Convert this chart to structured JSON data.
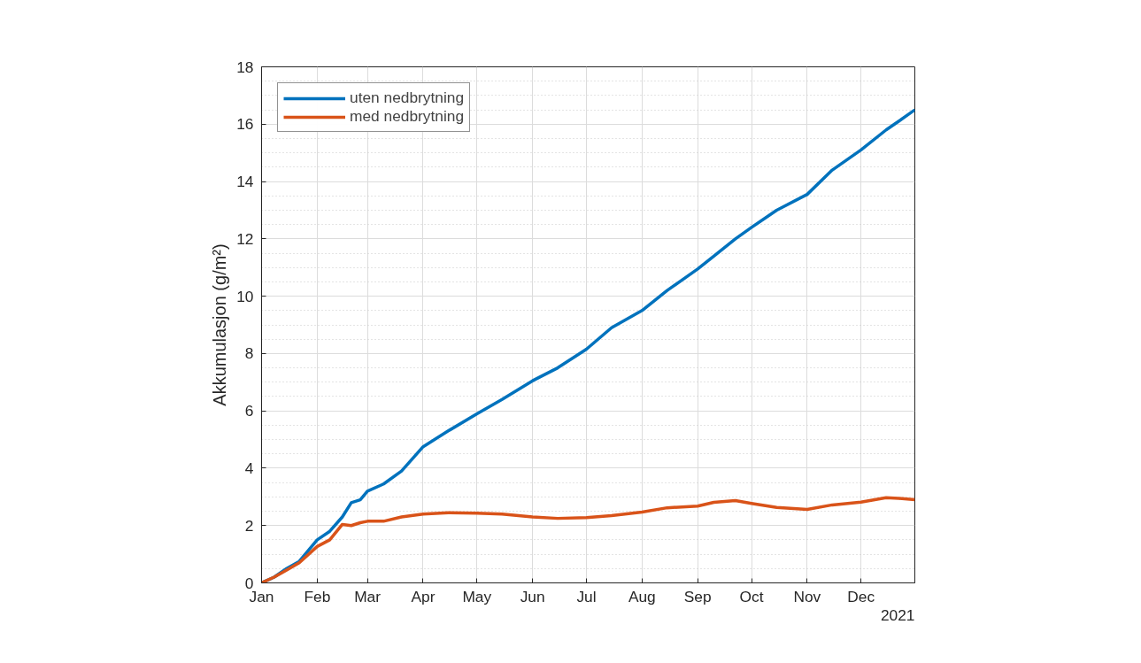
{
  "chart_data": {
    "type": "line",
    "ylabel": "Akkumulasjon (g/m²)",
    "annotations": [
      "2021"
    ],
    "x": [
      "2021-01-01",
      "2021-01-08",
      "2021-01-15",
      "2021-01-22",
      "2021-02-01",
      "2021-02-08",
      "2021-02-15",
      "2021-02-20",
      "2021-02-25",
      "2021-03-01",
      "2021-03-10",
      "2021-03-20",
      "2021-04-01",
      "2021-04-15",
      "2021-05-01",
      "2021-05-15",
      "2021-06-01",
      "2021-06-15",
      "2021-07-01",
      "2021-07-15",
      "2021-08-01",
      "2021-08-15",
      "2021-09-01",
      "2021-09-10",
      "2021-09-22",
      "2021-10-01",
      "2021-10-15",
      "2021-11-01",
      "2021-11-15",
      "2021-12-01",
      "2021-12-15",
      "2021-12-22",
      "2021-12-31"
    ],
    "series": [
      {
        "name": "uten nedbrytning",
        "color": "#0072bd",
        "values": [
          0,
          0.2,
          0.5,
          0.75,
          1.5,
          1.8,
          2.3,
          2.8,
          2.9,
          3.2,
          3.45,
          3.9,
          4.75,
          5.3,
          5.9,
          6.4,
          7.05,
          7.5,
          8.15,
          8.9,
          9.5,
          10.2,
          10.95,
          11.4,
          12.0,
          12.4,
          13.0,
          13.55,
          14.4,
          15.1,
          15.8,
          16.1,
          16.5
        ]
      },
      {
        "name": "med nedbrytning",
        "color": "#d95319",
        "values": [
          0,
          0.2,
          0.45,
          0.7,
          1.27,
          1.5,
          2.04,
          2.0,
          2.1,
          2.15,
          2.15,
          2.3,
          2.4,
          2.45,
          2.43,
          2.4,
          2.3,
          2.25,
          2.28,
          2.35,
          2.47,
          2.62,
          2.68,
          2.81,
          2.87,
          2.77,
          2.63,
          2.56,
          2.72,
          2.82,
          2.97,
          2.95,
          2.9
        ]
      }
    ],
    "xlim": [
      "2021-01-01",
      "2021-12-31"
    ],
    "xticks": [
      {
        "value": "2021-01-01",
        "label": "Jan"
      },
      {
        "value": "2021-02-01",
        "label": "Feb"
      },
      {
        "value": "2021-03-01",
        "label": "Mar"
      },
      {
        "value": "2021-04-01",
        "label": "Apr"
      },
      {
        "value": "2021-05-01",
        "label": "May"
      },
      {
        "value": "2021-06-01",
        "label": "Jun"
      },
      {
        "value": "2021-07-01",
        "label": "Jul"
      },
      {
        "value": "2021-08-01",
        "label": "Aug"
      },
      {
        "value": "2021-09-01",
        "label": "Sep"
      },
      {
        "value": "2021-10-01",
        "label": "Oct"
      },
      {
        "value": "2021-11-01",
        "label": "Nov"
      },
      {
        "value": "2021-12-01",
        "label": "Dec"
      }
    ],
    "ylim": [
      0,
      18
    ],
    "yticks": [
      0,
      2,
      4,
      6,
      8,
      10,
      12,
      14,
      16,
      18
    ],
    "grid": true,
    "legend": "top left",
    "line_style": "solid"
  }
}
